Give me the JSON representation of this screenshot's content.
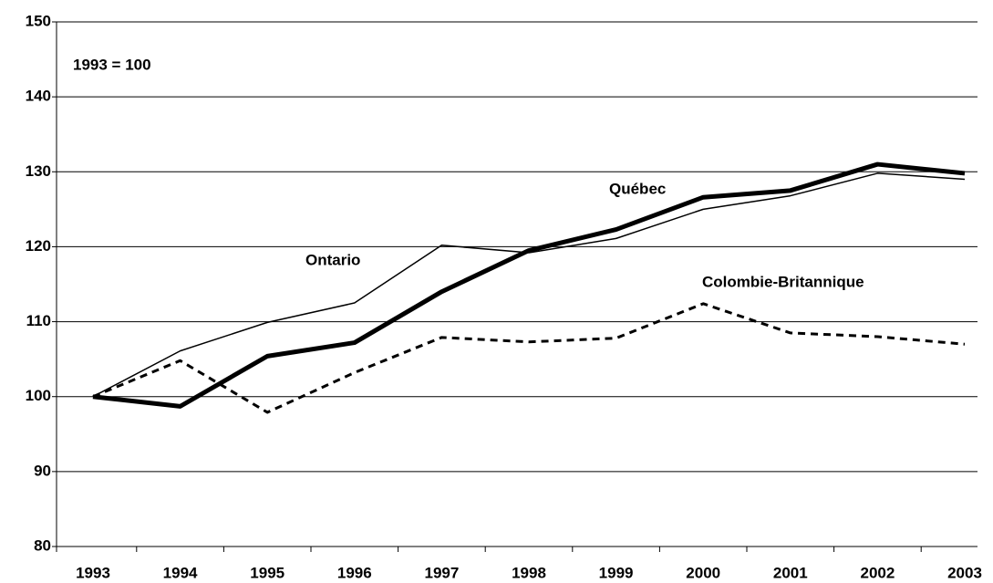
{
  "chart_data": {
    "type": "line",
    "annotation": "1993 = 100",
    "categories": [
      "1993",
      "1994",
      "1995",
      "1996",
      "1997",
      "1998",
      "1999",
      "2000",
      "2001",
      "2002",
      "2003"
    ],
    "series": [
      {
        "name": "Québec",
        "color": "#000000",
        "values": [
          100,
          98.7,
          105.4,
          107.2,
          114,
          119.5,
          122.3,
          126.6,
          127.5,
          131,
          129.8
        ]
      },
      {
        "name": "Ontario",
        "color": "#000000",
        "values": [
          100,
          106.1,
          109.9,
          112.5,
          120.2,
          119.2,
          121.1,
          125,
          126.8,
          129.8,
          129
        ]
      },
      {
        "name": "Colombie-Britannique",
        "color": "#000000",
        "values": [
          100,
          104.8,
          97.9,
          103.2,
          107.9,
          107.3,
          107.8,
          112.4,
          108.5,
          108,
          107
        ]
      }
    ],
    "ylim": [
      80,
      150
    ],
    "yticks": [
      80,
      90,
      100,
      110,
      120,
      130,
      140,
      150
    ],
    "grid": true
  }
}
